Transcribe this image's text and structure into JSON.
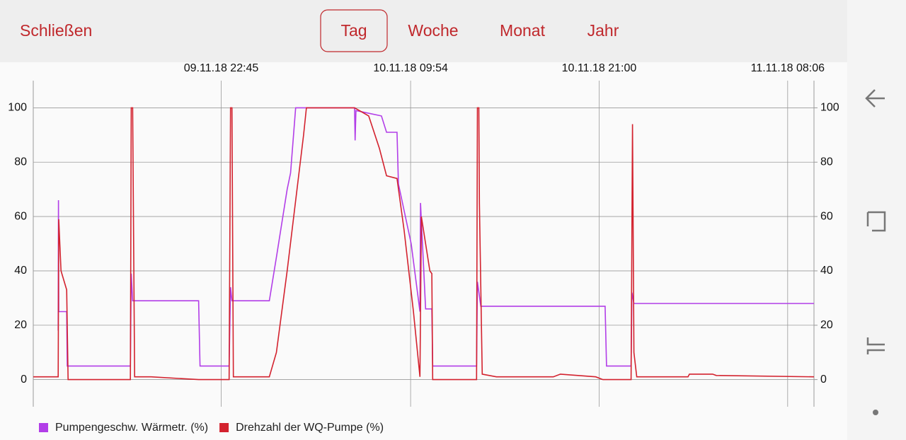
{
  "header": {
    "close": "Schließen",
    "tabs": [
      "Tag",
      "Woche",
      "Monat",
      "Jahr"
    ],
    "selected_tab": 0
  },
  "chart_data": {
    "type": "line",
    "series": [
      {
        "name": "Pumpengeschw. Wärmetr. (%)",
        "color": "#b23ee8",
        "x": [
          "09.11.18 13:09",
          "09.11.18 13:10",
          "09.11.18 13:11",
          "09.11.18 13:39",
          "09.11.18 13:41",
          "09.11.18 17:24",
          "09.11.18 17:27",
          "09.11.18 17:32",
          "09.11.18 21:25",
          "09.11.18 21:30",
          "09.11.18 23:13",
          "09.11.18 23:18",
          "09.11.18 23:23",
          "10.11.18 01:35",
          "10.11.18 02:00",
          "10.11.18 02:38",
          "10.11.18 02:50",
          "10.11.18 03:08",
          "10.11.18 06:36",
          "10.11.18 06:38",
          "10.11.18 06:41",
          "10.11.18 08:11",
          "10.11.18 08:29",
          "10.11.18 09:06",
          "10.11.18 09:11",
          "10.11.18 09:56",
          "10.11.18 10:27",
          "10.11.18 10:29",
          "10.11.18 10:47",
          "10.11.18 11:09",
          "10.11.18 11:12",
          "10.11.18 13:47",
          "10.11.18 13:50",
          "10.11.18 14:02",
          "10.11.18 21:21",
          "10.11.18 21:26",
          "10.11.18 22:53",
          "10.11.18 22:56",
          "10.11.18 23:03",
          "11.11.18 09:39"
        ],
        "values": [
          18,
          66,
          25,
          25,
          5,
          5,
          39,
          29,
          29,
          5,
          5,
          34,
          29,
          29,
          45,
          70,
          76,
          100,
          100,
          88,
          99,
          97,
          91,
          91,
          72,
          50,
          25,
          65,
          26,
          26,
          5,
          5,
          36,
          27,
          27,
          5,
          5,
          32,
          28,
          28
        ]
      },
      {
        "name": "Drehzahl der WQ-Pumpe (%)",
        "color": "#d3222e",
        "x": [
          "09.11.18 11:41",
          "09.11.18 13:09",
          "09.11.18 13:11",
          "09.11.18 13:19",
          "09.11.18 13:39",
          "09.11.18 13:44",
          "09.11.18 17:24",
          "09.11.18 17:27",
          "09.11.18 17:32",
          "09.11.18 17:39",
          "09.11.18 18:37",
          "09.11.18 21:25",
          "09.11.18 23:13",
          "09.11.18 23:18",
          "09.11.18 23:23",
          "09.11.18 23:28",
          "10.11.18 01:35",
          "10.11.18 02:00",
          "10.11.18 02:38",
          "10.11.18 03:36",
          "10.11.18 03:46",
          "10.11.18 06:36",
          "10.11.18 07:26",
          "10.11.18 08:04",
          "10.11.18 08:29",
          "10.11.18 09:06",
          "10.11.18 09:31",
          "10.11.18 10:04",
          "10.11.18 10:27",
          "10.11.18 10:32",
          "10.11.18 11:02",
          "10.11.18 11:09",
          "10.11.18 11:12",
          "10.11.18 13:47",
          "10.11.18 13:50",
          "10.11.18 13:55",
          "10.11.18 13:57",
          "10.11.18 14:07",
          "10.11.18 14:57",
          "10.11.18 18:18",
          "10.11.18 18:43",
          "10.11.18 20:48",
          "10.11.18 21:13",
          "10.11.18 22:53",
          "10.11.18 22:58",
          "10.11.18 23:03",
          "10.11.18 23:13",
          "11.11.18 02:14",
          "11.11.18 02:19",
          "11.11.18 03:41",
          "11.11.18 03:54",
          "11.11.18 09:39"
        ],
        "values": [
          1,
          1,
          59,
          40,
          33,
          0,
          0,
          100,
          100,
          1,
          1,
          0,
          0,
          100,
          100,
          1,
          1,
          10,
          40,
          90,
          100,
          100,
          97,
          85,
          75,
          74,
          55,
          25,
          1,
          60,
          40,
          39,
          0,
          0,
          100,
          100,
          65,
          2,
          1,
          1,
          2,
          1,
          0,
          0,
          94,
          10,
          1,
          1,
          2,
          2,
          1.5,
          1
        ]
      }
    ],
    "xlim": [
      "09.11.18 11:41",
      "11.11.18 09:39"
    ],
    "xticks": [
      "09.11.18 22:45",
      "10.11.18 09:54",
      "10.11.18 21:00",
      "11.11.18 08:06"
    ],
    "ylim": [
      -10,
      110
    ],
    "yticks": [
      0,
      20,
      40,
      60,
      80,
      100
    ],
    "y2lim": [
      -10,
      110
    ],
    "y2ticks": [
      0,
      20,
      40,
      60,
      80,
      100
    ],
    "grid": true,
    "legend": "bottom-left"
  }
}
